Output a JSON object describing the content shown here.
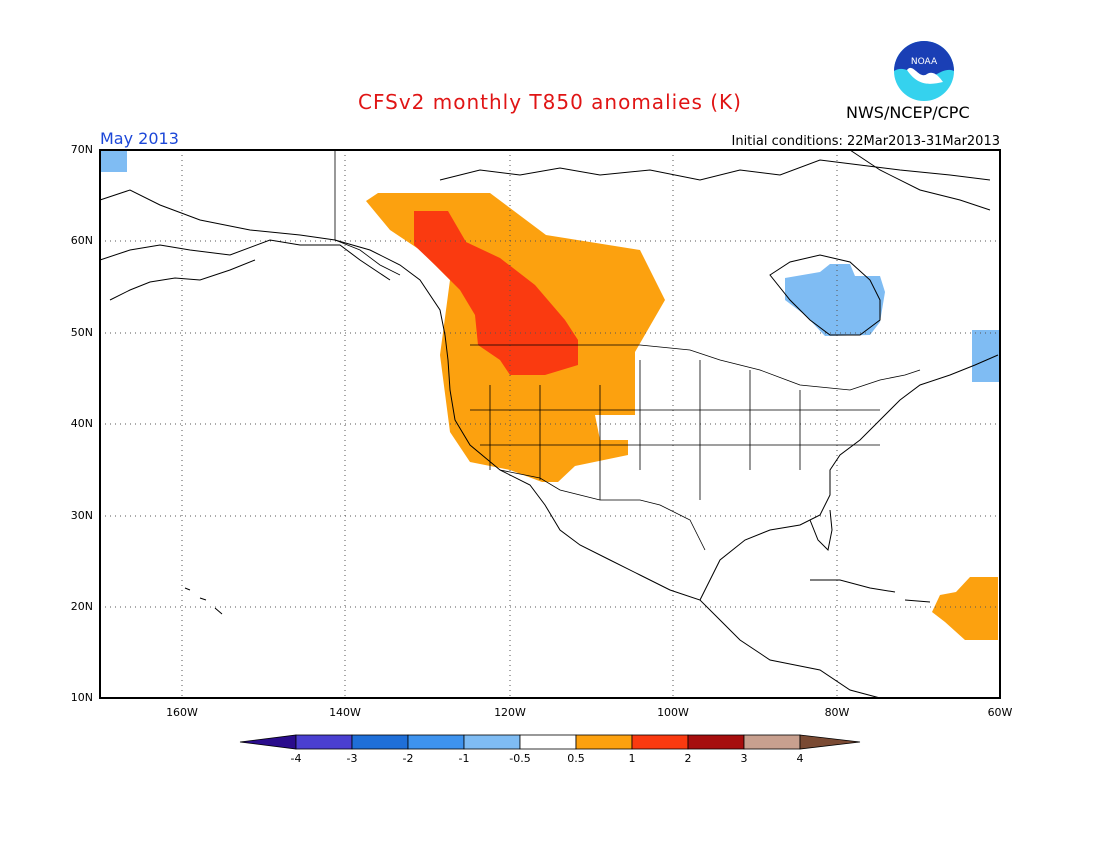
{
  "header": {
    "title": "CFSv2 monthly T850 anomalies (K)",
    "month": "May 2013",
    "initial_conditions": "Initial conditions: 22Mar2013-31Mar2013",
    "agency": "NWS/NCEP/CPC",
    "logo_text": "NOAA"
  },
  "map": {
    "lat_labels": [
      "70N",
      "60N",
      "50N",
      "40N",
      "30N",
      "20N",
      "10N"
    ],
    "lon_labels": [
      "160W",
      "140W",
      "120W",
      "100W",
      "80W",
      "60W"
    ],
    "extent": {
      "lon": [
        -170,
        -60
      ],
      "lat": [
        10,
        70
      ]
    },
    "grid": "dotted"
  },
  "colorbar": {
    "labels": [
      "-4",
      "-3",
      "-2",
      "-1",
      "-0.5",
      "0.5",
      "1",
      "2",
      "3",
      "4"
    ],
    "colors": [
      "#2a0c8c",
      "#4a3fd0",
      "#1f6fd8",
      "#3e93ee",
      "#7fbcf3",
      "#ffffff",
      "#fca10f",
      "#fa3a10",
      "#a60e0e",
      "#c8a08f",
      "#7a4a33"
    ]
  },
  "colors": {
    "orange": "#fca10f",
    "red": "#fa3a10",
    "light_blue": "#7fbcf3",
    "title_red": "#e01515",
    "month_blue": "#1c47d8",
    "logo_blue": "#1a3fb5",
    "logo_cyan": "#35d2ee"
  }
}
